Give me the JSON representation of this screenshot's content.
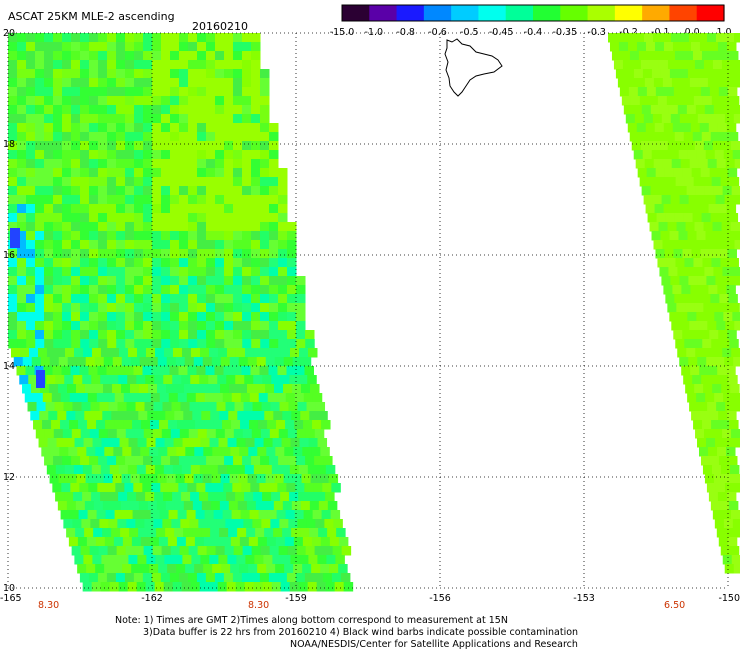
{
  "header": {
    "title": "ASCAT 25KM MLE-2 ascending",
    "date": "20160210"
  },
  "colorbar": {
    "ticks": [
      "-15.0",
      "-1.0",
      "-0.8",
      "-0.6",
      "-0.5",
      "-0.45",
      "-0.4",
      "-0.35",
      "-0.3",
      "-0.2",
      "-0.1",
      "0.0",
      "1.0"
    ],
    "colors": [
      "#2b0033",
      "#5a00a8",
      "#1a1aff",
      "#0088ff",
      "#00ccff",
      "#00ffee",
      "#00ff99",
      "#22ff33",
      "#66ff00",
      "#aaff00",
      "#ffff00",
      "#ffaa00",
      "#ff4400",
      "#ff0000"
    ]
  },
  "map": {
    "lon_labels": [
      "-165",
      "-162",
      "-159",
      "-156",
      "-153",
      "-150"
    ],
    "lat_labels": [
      "20",
      "18",
      "16",
      "14",
      "12",
      "10"
    ],
    "lon_range": [
      -165,
      -150
    ],
    "lat_range": [
      10,
      20
    ],
    "gridlines": true,
    "land": "Hawaii (Big Island) outline"
  },
  "swath_times": [
    "8.30",
    "8.30",
    "6.50"
  ],
  "notes": {
    "line1": "Note: 1) Times are GMT 2)Times along bottom correspond to measurement at 15N",
    "line2": "3)Data buffer is 22 hrs from 20160210 4) Black wind barbs indicate possible contamination",
    "line3": "NOAA/NESDIS/Center for Satellite Applications and Research"
  }
}
